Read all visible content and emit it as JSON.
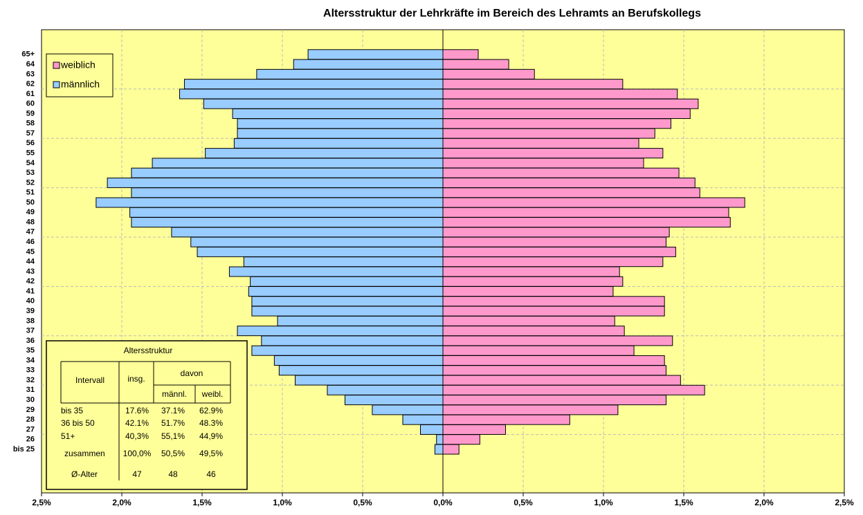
{
  "chart_data": {
    "type": "pyramid",
    "title": "Altersstruktur der Lehrkräfte im Bereich des Lehramts an Berufskollegs",
    "categories": [
      "bis 25",
      "26",
      "27",
      "28",
      "29",
      "30",
      "31",
      "32",
      "33",
      "34",
      "35",
      "36",
      "37",
      "38",
      "39",
      "40",
      "41",
      "42",
      "43",
      "44",
      "45",
      "46",
      "47",
      "48",
      "49",
      "50",
      "51",
      "52",
      "53",
      "54",
      "55",
      "56",
      "57",
      "58",
      "59",
      "60",
      "61",
      "62",
      "63",
      "64",
      "65+"
    ],
    "series": [
      {
        "name": "weiblich",
        "color": "#ff99cc",
        "values": [
          0.1,
          0.23,
          0.39,
          0.79,
          1.09,
          1.39,
          1.63,
          1.48,
          1.39,
          1.38,
          1.19,
          1.43,
          1.13,
          1.07,
          1.38,
          1.38,
          1.06,
          1.12,
          1.1,
          1.37,
          1.45,
          1.39,
          1.41,
          1.79,
          1.78,
          1.88,
          1.6,
          1.57,
          1.47,
          1.25,
          1.37,
          1.22,
          1.32,
          1.42,
          1.54,
          1.59,
          1.46,
          1.12,
          0.57,
          0.41,
          0.22
        ]
      },
      {
        "name": "männlich",
        "color": "#99ccff",
        "values": [
          -0.05,
          -0.04,
          -0.14,
          -0.25,
          -0.44,
          -0.61,
          -0.72,
          -0.92,
          -1.02,
          -1.05,
          -1.19,
          -1.13,
          -1.28,
          -1.03,
          -1.19,
          -1.19,
          -1.21,
          -1.2,
          -1.33,
          -1.24,
          -1.53,
          -1.57,
          -1.69,
          -1.94,
          -1.95,
          -2.16,
          -1.94,
          -2.09,
          -1.94,
          -1.81,
          -1.48,
          -1.3,
          -1.28,
          -1.28,
          -1.31,
          -1.49,
          -1.64,
          -1.61,
          -1.16,
          -0.93,
          -0.84
        ]
      }
    ],
    "xlim": [
      -2.5,
      2.5
    ],
    "xticks": [
      {
        "value": -2.5,
        "label": "2,5%"
      },
      {
        "value": -2,
        "label": "2,0%"
      },
      {
        "value": -1.5,
        "label": "1,5%"
      },
      {
        "value": -1,
        "label": "1,0%"
      },
      {
        "value": -0.5,
        "label": "0,5%"
      },
      {
        "value": 0,
        "label": "0,0%"
      },
      {
        "value": 0.5,
        "label": "0,5%"
      },
      {
        "value": 1,
        "label": "1,0%"
      },
      {
        "value": 1.5,
        "label": "1,5%"
      },
      {
        "value": 2,
        "label": "2,0%"
      },
      {
        "value": 2.5,
        "label": "2,5%"
      }
    ],
    "grid": true,
    "legend": "upper left",
    "table": {
      "title": "Altersstruktur",
      "headers": [
        "Intervall",
        "insg.",
        "davon",
        "männl.",
        "weibl."
      ],
      "rows": [
        [
          "bis 35",
          "17.6%",
          "37.1%",
          "62.9%"
        ],
        [
          "36 bis 50",
          "42.1%",
          "51.7%",
          "48.3%"
        ],
        [
          "51+",
          "40,3%",
          "55,1%",
          "44,9%"
        ],
        [
          "zusammen",
          "100,0%",
          "50,5%",
          "49,5%"
        ],
        [
          "Ø-Alter",
          "47",
          "48",
          "46"
        ]
      ]
    }
  }
}
